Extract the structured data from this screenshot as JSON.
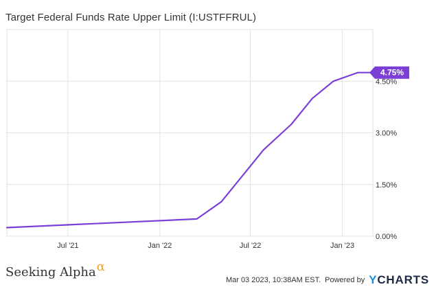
{
  "chart_title": "Target Federal Funds Rate Upper Limit (I:USTFFRUL)",
  "branding": {
    "left_logo": "Seeking Alpha",
    "left_logo_mark": "α",
    "timestamp": "Mar 03 2023, 10:38AM EST.",
    "powered_by": "Powered by",
    "right_logo_mark": "Y",
    "right_logo": "CHARTS"
  },
  "colors": {
    "line": "#7b3fd6",
    "grid": "#e2e2e2",
    "axis_text": "#333333"
  },
  "chart_data": {
    "type": "line",
    "title": "Target Federal Funds Rate Upper Limit (I:USTFFRUL)",
    "xlabel": "",
    "ylabel": "",
    "x_ticks": [
      "Jul '21",
      "Jan '22",
      "Jul '22",
      "Jan '23"
    ],
    "y_ticks": [
      "0.00%",
      "1.50%",
      "3.00%",
      "4.50%"
    ],
    "ylim": [
      0,
      6.0
    ],
    "xlim": [
      "2021-03-01",
      "2023-03-03"
    ],
    "grid": true,
    "last_value_label": "4.75%",
    "series": [
      {
        "x": [
          "2021-03-01",
          "2022-03-16",
          "2022-05-04",
          "2022-06-15",
          "2022-07-27",
          "2022-09-21",
          "2022-11-02",
          "2022-12-14",
          "2023-02-01",
          "2023-03-03"
        ],
        "values": [
          0.25,
          0.5,
          1.0,
          1.75,
          2.5,
          3.25,
          4.0,
          4.5,
          4.75,
          4.75
        ]
      }
    ]
  }
}
